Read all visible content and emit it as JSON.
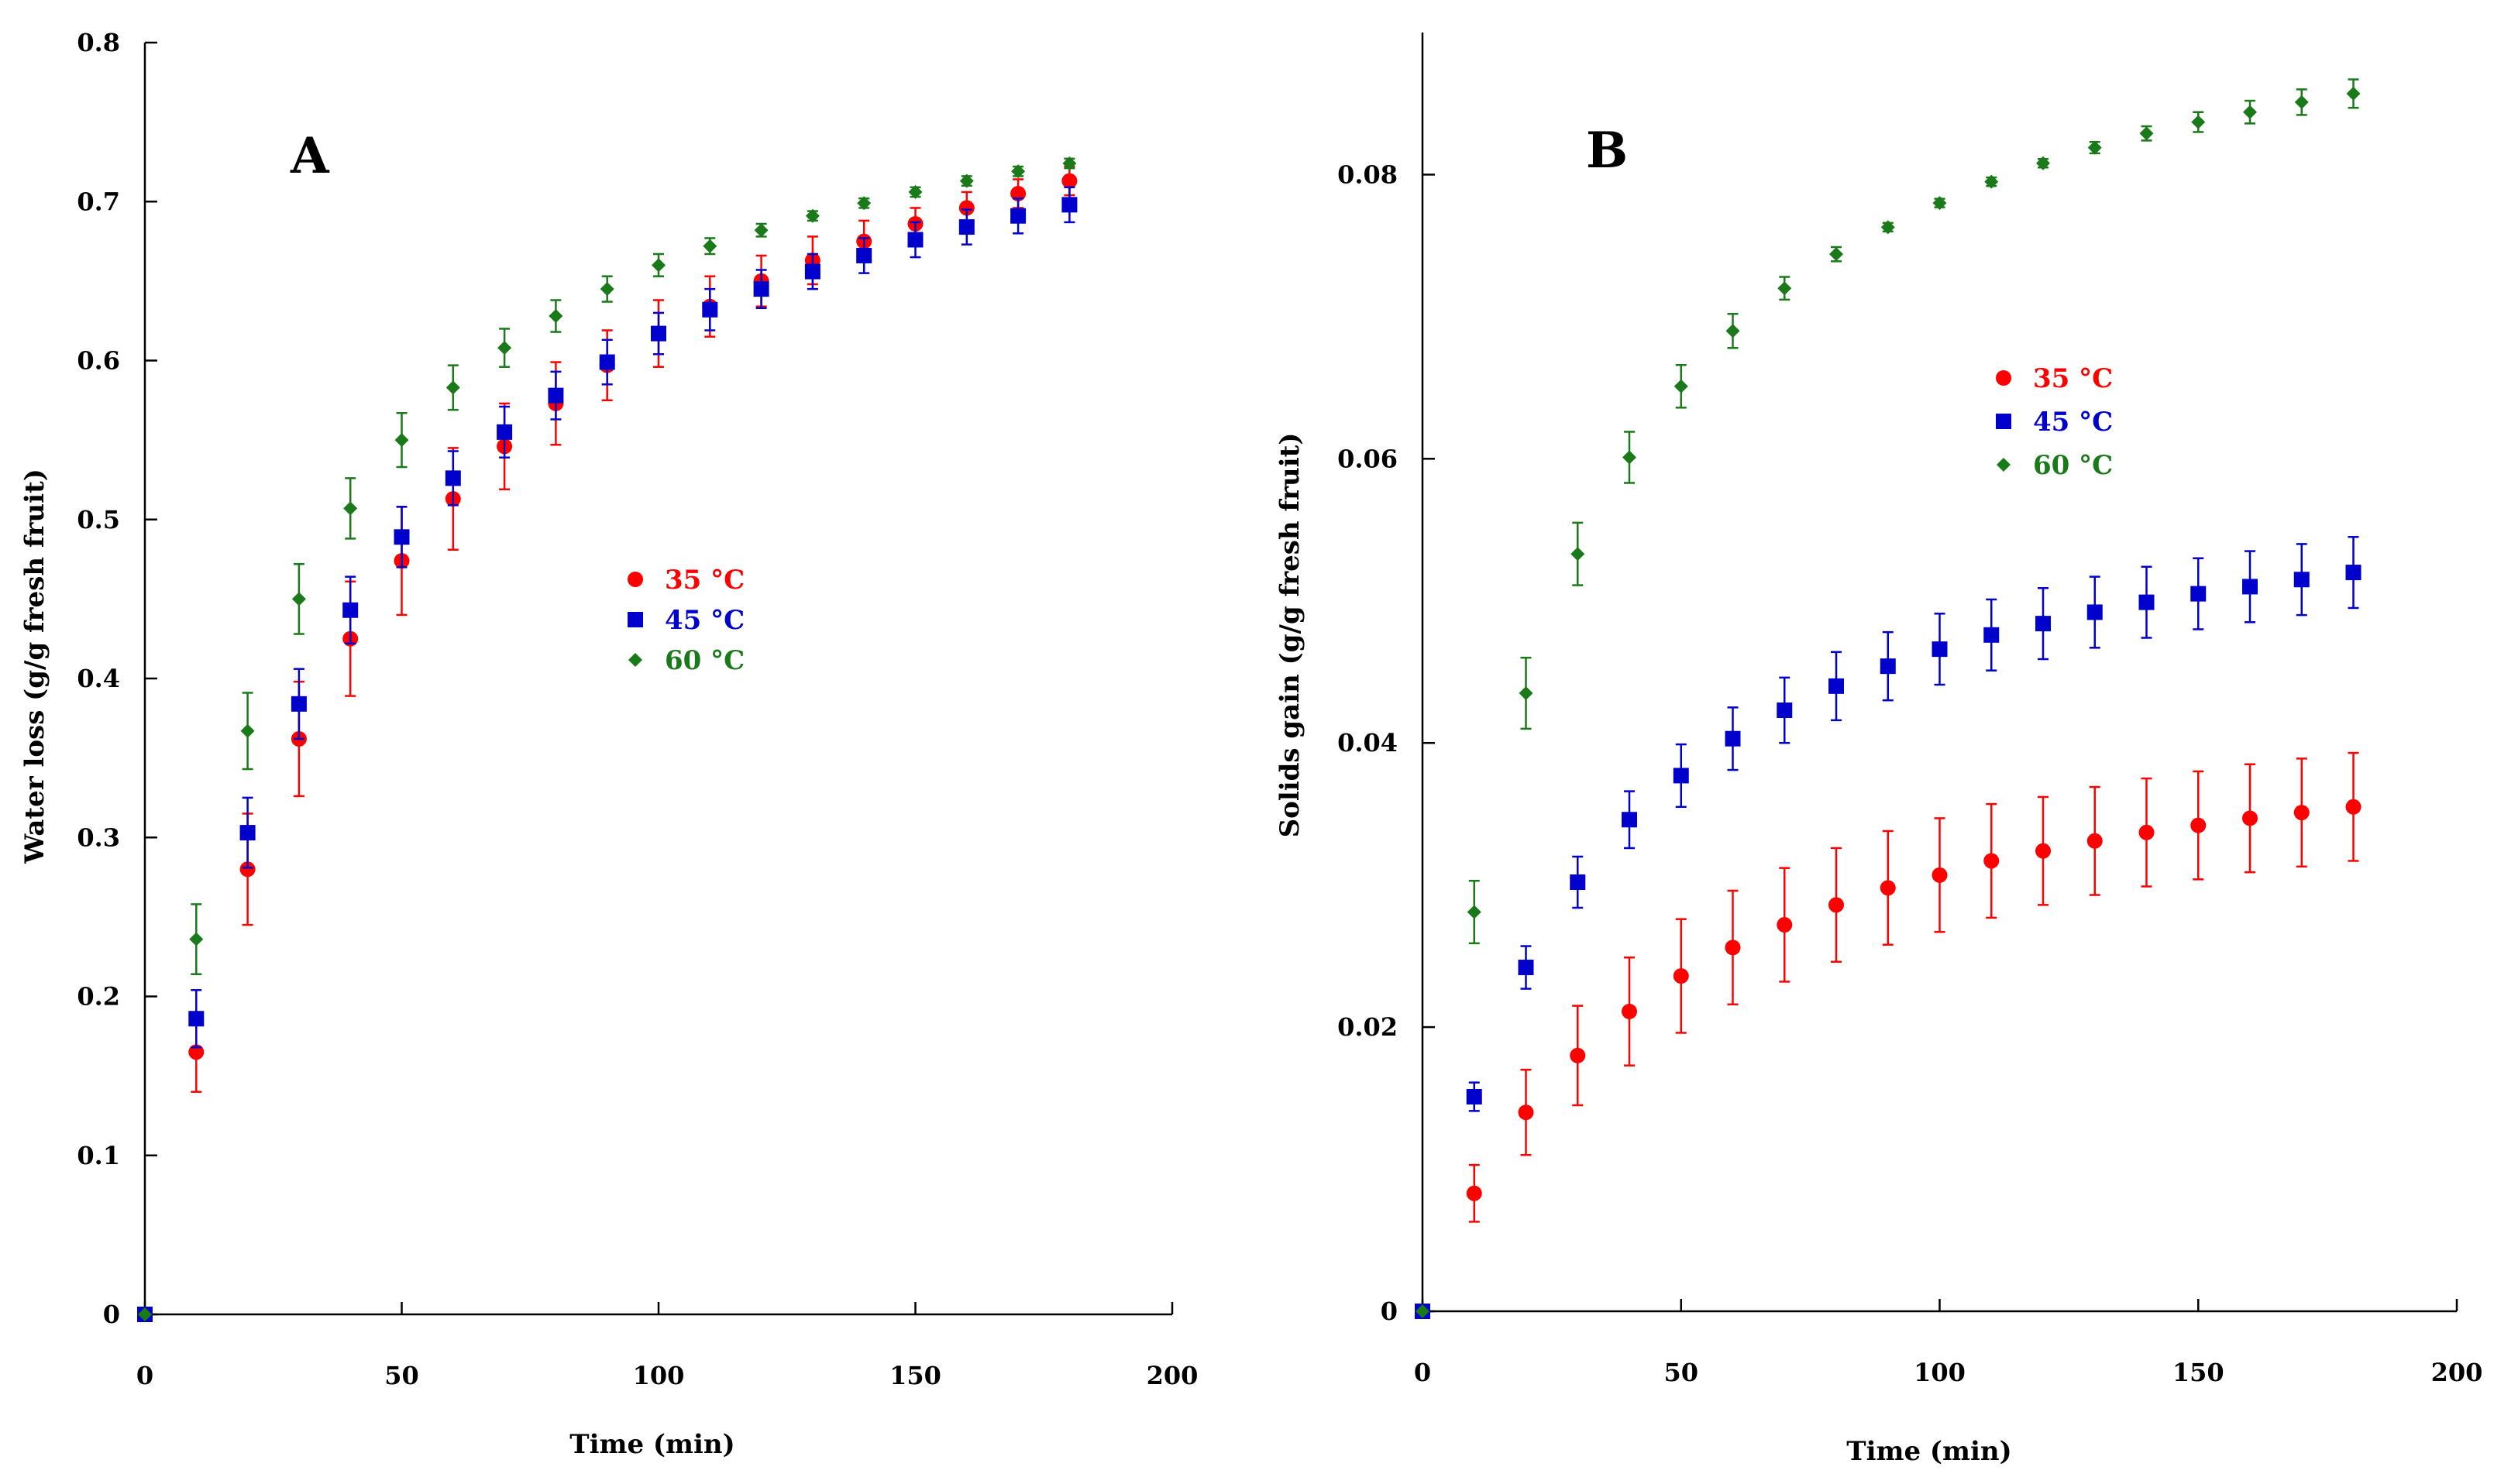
{
  "chart_data": [
    {
      "type": "scatter",
      "panel_label": "A",
      "xlabel": "Time (min)",
      "ylabel": "Water loss (g/g fresh fruit)",
      "xlim": [
        0,
        200
      ],
      "ylim": [
        0,
        0.8
      ],
      "x_ticks": [
        0,
        50,
        100,
        150,
        200
      ],
      "y_ticks": [
        0,
        0.1,
        0.2,
        0.3,
        0.4,
        0.5,
        0.6,
        0.7,
        0.8
      ],
      "x_tick_labels": [
        "0",
        "50",
        "100",
        "150",
        "200"
      ],
      "y_tick_labels": [
        "0",
        "0.1",
        "0.2",
        "0.3",
        "0.4",
        "0.5",
        "0.6",
        "0.7",
        "0.8"
      ],
      "grid": false,
      "legend_position": "center",
      "x": [
        0,
        10,
        20,
        30,
        40,
        50,
        60,
        70,
        80,
        90,
        100,
        110,
        120,
        130,
        140,
        150,
        160,
        170,
        180
      ],
      "series": [
        {
          "name": "35 °C",
          "marker": "circle",
          "color": "#ff0000",
          "values": [
            0,
            0.165,
            0.28,
            0.362,
            0.425,
            0.474,
            0.513,
            0.546,
            0.573,
            0.597,
            0.617,
            0.634,
            0.65,
            0.663,
            0.675,
            0.686,
            0.696,
            0.705,
            0.713
          ],
          "errors": [
            0,
            0.025,
            0.035,
            0.036,
            0.036,
            0.034,
            0.032,
            0.027,
            0.026,
            0.022,
            0.021,
            0.019,
            0.016,
            0.015,
            0.013,
            0.01,
            0.01,
            0.009,
            0.009
          ]
        },
        {
          "name": "45 °C",
          "marker": "square",
          "color": "#0000cc",
          "values": [
            0,
            0.186,
            0.303,
            0.384,
            0.443,
            0.489,
            0.526,
            0.555,
            0.578,
            0.599,
            0.617,
            0.632,
            0.645,
            0.656,
            0.666,
            0.676,
            0.684,
            0.691,
            0.698
          ],
          "errors": [
            0,
            0.018,
            0.022,
            0.022,
            0.021,
            0.019,
            0.017,
            0.016,
            0.015,
            0.014,
            0.013,
            0.013,
            0.012,
            0.011,
            0.011,
            0.011,
            0.011,
            0.011,
            0.011
          ]
        },
        {
          "name": "60 °C",
          "marker": "diamond",
          "color": "#1a7a1a",
          "values": [
            0,
            0.236,
            0.367,
            0.45,
            0.507,
            0.55,
            0.583,
            0.608,
            0.628,
            0.645,
            0.66,
            0.672,
            0.682,
            0.691,
            0.699,
            0.706,
            0.713,
            0.719,
            0.724
          ],
          "errors": [
            0,
            0.022,
            0.024,
            0.022,
            0.019,
            0.017,
            0.014,
            0.012,
            0.01,
            0.008,
            0.007,
            0.005,
            0.004,
            0.003,
            0.003,
            0.003,
            0.003,
            0.003,
            0.003
          ]
        }
      ]
    },
    {
      "type": "scatter",
      "panel_label": "B",
      "xlabel": "Time (min)",
      "ylabel": "Solids gain (g/g fresh fruit)",
      "xlim": [
        0,
        200
      ],
      "ylim": [
        0,
        0.09
      ],
      "x_ticks": [
        0,
        50,
        100,
        150,
        200
      ],
      "y_ticks": [
        0,
        0.02,
        0.04,
        0.06,
        0.08
      ],
      "x_tick_labels": [
        "0",
        "50",
        "100",
        "150",
        "200"
      ],
      "y_tick_labels": [
        "0",
        "0.02",
        "0.04",
        "0.06",
        "0.08"
      ],
      "grid": false,
      "legend_position": "upper-center",
      "x": [
        0,
        10,
        20,
        30,
        40,
        50,
        60,
        70,
        80,
        90,
        100,
        110,
        120,
        130,
        140,
        150,
        160,
        170,
        180
      ],
      "series": [
        {
          "name": "35 °C",
          "marker": "circle",
          "color": "#ff0000",
          "values": [
            0,
            0.0083,
            0.014,
            0.018,
            0.0211,
            0.0236,
            0.0256,
            0.0272,
            0.0286,
            0.0298,
            0.0307,
            0.0317,
            0.0324,
            0.0331,
            0.0337,
            0.0342,
            0.0347,
            0.0351,
            0.0355
          ],
          "errors": [
            0,
            0.002,
            0.003,
            0.0035,
            0.0038,
            0.004,
            0.004,
            0.004,
            0.004,
            0.004,
            0.004,
            0.004,
            0.0038,
            0.0038,
            0.0038,
            0.0038,
            0.0038,
            0.0038,
            0.0038
          ]
        },
        {
          "name": "45 °C",
          "marker": "square",
          "color": "#0000cc",
          "values": [
            0,
            0.0151,
            0.0242,
            0.0302,
            0.0346,
            0.0377,
            0.0403,
            0.0423,
            0.044,
            0.0454,
            0.0466,
            0.0476,
            0.0484,
            0.0492,
            0.0499,
            0.0505,
            0.051,
            0.0515,
            0.052
          ],
          "errors": [
            0,
            0.001,
            0.0015,
            0.0018,
            0.002,
            0.0022,
            0.0022,
            0.0023,
            0.0024,
            0.0024,
            0.0025,
            0.0025,
            0.0025,
            0.0025,
            0.0025,
            0.0025,
            0.0025,
            0.0025,
            0.0025
          ]
        },
        {
          "name": "60 °C",
          "marker": "diamond",
          "color": "#1a7a1a",
          "values": [
            0,
            0.0281,
            0.0435,
            0.0533,
            0.0601,
            0.0651,
            0.069,
            0.072,
            0.0744,
            0.0763,
            0.078,
            0.0795,
            0.0808,
            0.0819,
            0.0829,
            0.0837,
            0.0844,
            0.0851,
            0.0857
          ],
          "errors": [
            0,
            0.0022,
            0.0025,
            0.0022,
            0.0018,
            0.0015,
            0.0012,
            0.0008,
            0.0005,
            0.0003,
            0.0003,
            0.0003,
            0.0003,
            0.0004,
            0.0005,
            0.0007,
            0.0008,
            0.0009,
            0.001
          ]
        }
      ]
    }
  ]
}
